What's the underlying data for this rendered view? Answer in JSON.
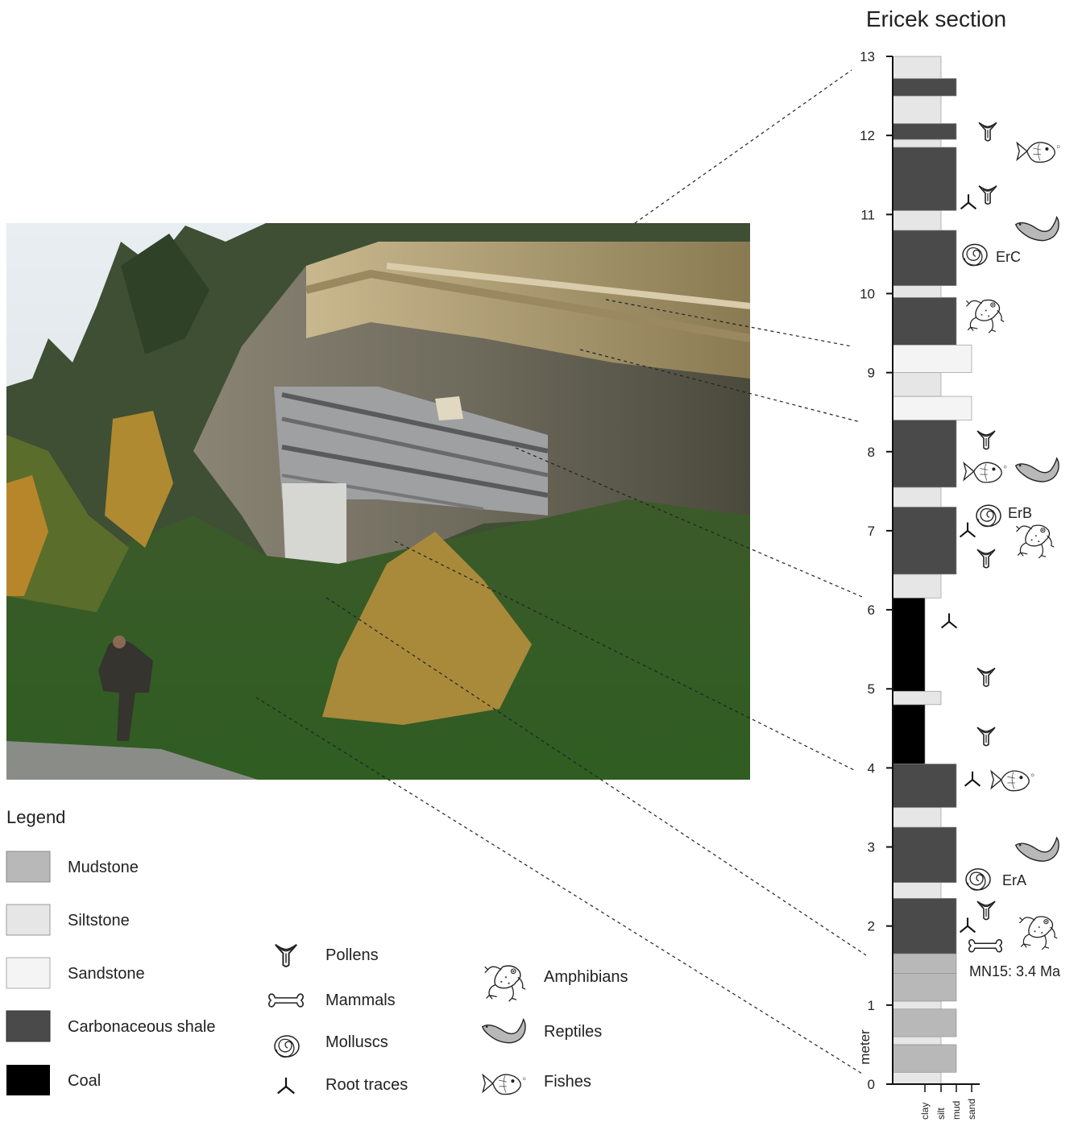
{
  "section_title": "Ericek section",
  "y_axis_label": "meter",
  "y_ticks": [
    "0",
    "1",
    "2",
    "3",
    "4",
    "5",
    "6",
    "7",
    "8",
    "9",
    "10",
    "11",
    "12",
    "13"
  ],
  "grain_size_labels": [
    "clay",
    "silt",
    "mud",
    "sand"
  ],
  "sample_labels": {
    "erc": "ErC",
    "erb": "ErB",
    "era": "ErA"
  },
  "age_label": "MN15: 3.4 Ma",
  "legend": {
    "title": "Legend",
    "lithologies": [
      "Mudstone",
      "Siltstone",
      "Sandstone",
      "Carbonaceous shale",
      "Coal"
    ],
    "fossils_col1": [
      "Pollens",
      "Mammals",
      "Molluscs",
      "Root traces"
    ],
    "fossils_col2": [
      "Amphibians",
      "Reptiles",
      "Fishes"
    ]
  },
  "lithology_colors": {
    "mudstone": "#b8b8b8",
    "siltstone": "#e6e6e6",
    "sandstone": "#f4f4f4",
    "carbonaceous_shale": "#4a4a4a",
    "coal": "#000000"
  },
  "chart_data": {
    "type": "stratigraphic_column",
    "units": "meter",
    "ylim": [
      0,
      13
    ],
    "grain_size_scale": [
      "clay",
      "silt",
      "mud",
      "sand"
    ],
    "layers": [
      {
        "from": 0.0,
        "to": 0.15,
        "lithology": "siltstone"
      },
      {
        "from": 0.15,
        "to": 0.5,
        "lithology": "mudstone"
      },
      {
        "from": 0.5,
        "to": 0.6,
        "lithology": "siltstone"
      },
      {
        "from": 0.6,
        "to": 0.95,
        "lithology": "mudstone"
      },
      {
        "from": 0.95,
        "to": 1.05,
        "lithology": "siltstone"
      },
      {
        "from": 1.05,
        "to": 1.4,
        "lithology": "mudstone"
      },
      {
        "from": 1.4,
        "to": 1.65,
        "lithology": "mudstone"
      },
      {
        "from": 1.65,
        "to": 2.35,
        "lithology": "carbonaceous_shale"
      },
      {
        "from": 2.35,
        "to": 2.55,
        "lithology": "siltstone"
      },
      {
        "from": 2.55,
        "to": 3.25,
        "lithology": "carbonaceous_shale"
      },
      {
        "from": 3.25,
        "to": 3.5,
        "lithology": "siltstone"
      },
      {
        "from": 3.5,
        "to": 4.05,
        "lithology": "carbonaceous_shale"
      },
      {
        "from": 4.05,
        "to": 4.8,
        "lithology": "coal"
      },
      {
        "from": 4.8,
        "to": 4.97,
        "lithology": "siltstone"
      },
      {
        "from": 4.97,
        "to": 6.15,
        "lithology": "coal"
      },
      {
        "from": 6.15,
        "to": 6.45,
        "lithology": "siltstone"
      },
      {
        "from": 6.45,
        "to": 7.3,
        "lithology": "carbonaceous_shale"
      },
      {
        "from": 7.3,
        "to": 7.55,
        "lithology": "siltstone"
      },
      {
        "from": 7.55,
        "to": 8.4,
        "lithology": "carbonaceous_shale"
      },
      {
        "from": 8.4,
        "to": 8.7,
        "lithology": "sandstone"
      },
      {
        "from": 8.7,
        "to": 9.0,
        "lithology": "siltstone"
      },
      {
        "from": 9.0,
        "to": 9.35,
        "lithology": "sandstone"
      },
      {
        "from": 9.35,
        "to": 9.95,
        "lithology": "carbonaceous_shale"
      },
      {
        "from": 9.95,
        "to": 10.1,
        "lithology": "siltstone"
      },
      {
        "from": 10.1,
        "to": 10.8,
        "lithology": "carbonaceous_shale"
      },
      {
        "from": 10.8,
        "to": 11.05,
        "lithology": "siltstone"
      },
      {
        "from": 11.05,
        "to": 11.85,
        "lithology": "carbonaceous_shale"
      },
      {
        "from": 11.85,
        "to": 11.95,
        "lithology": "siltstone"
      },
      {
        "from": 11.95,
        "to": 12.15,
        "lithology": "carbonaceous_shale"
      },
      {
        "from": 12.15,
        "to": 12.5,
        "lithology": "siltstone"
      },
      {
        "from": 12.5,
        "to": 12.72,
        "lithology": "carbonaceous_shale"
      },
      {
        "from": 12.72,
        "to": 13.0,
        "lithology": "siltstone"
      }
    ],
    "fossil_occurrences": [
      {
        "level": 12.05,
        "taxon": "Pollens"
      },
      {
        "level": 11.8,
        "taxon": "Fishes"
      },
      {
        "level": 11.25,
        "taxon": "Pollens"
      },
      {
        "level": 11.15,
        "taxon": "Root traces"
      },
      {
        "level": 10.8,
        "taxon": "Reptiles"
      },
      {
        "level": 10.5,
        "taxon": "Molluscs",
        "sample": "ErC"
      },
      {
        "level": 9.75,
        "taxon": "Amphibians"
      },
      {
        "level": 8.15,
        "taxon": "Pollens"
      },
      {
        "level": 7.75,
        "taxon": "Fishes"
      },
      {
        "level": 7.75,
        "taxon": "Reptiles"
      },
      {
        "level": 7.2,
        "taxon": "Molluscs",
        "sample": "ErB"
      },
      {
        "level": 7.0,
        "taxon": "Root traces"
      },
      {
        "level": 6.9,
        "taxon": "Amphibians"
      },
      {
        "level": 6.65,
        "taxon": "Pollens"
      },
      {
        "level": 5.85,
        "taxon": "Root traces"
      },
      {
        "level": 5.15,
        "taxon": "Pollens"
      },
      {
        "level": 4.4,
        "taxon": "Pollens"
      },
      {
        "level": 3.85,
        "taxon": "Root traces"
      },
      {
        "level": 3.85,
        "taxon": "Fishes"
      },
      {
        "level": 2.95,
        "taxon": "Reptiles"
      },
      {
        "level": 2.6,
        "taxon": "Molluscs",
        "sample": "ErA"
      },
      {
        "level": 2.2,
        "taxon": "Pollens"
      },
      {
        "level": 2.0,
        "taxon": "Root traces"
      },
      {
        "level": 1.95,
        "taxon": "Amphibians"
      },
      {
        "level": 1.75,
        "taxon": "Mammals"
      }
    ]
  }
}
